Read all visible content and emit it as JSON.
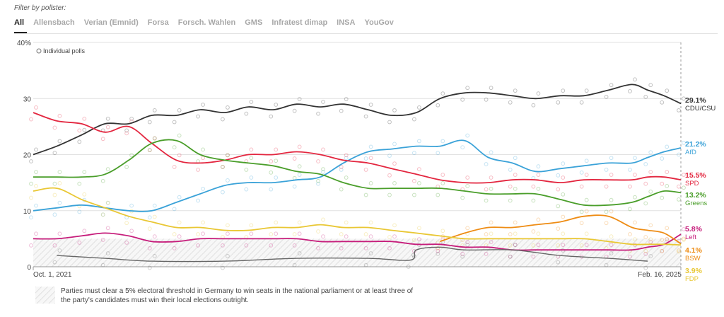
{
  "filter": {
    "label": "Filter by pollster:",
    "tabs": [
      {
        "label": "All",
        "active": true
      },
      {
        "label": "Allensbach",
        "active": false
      },
      {
        "label": "Verian (Emnid)",
        "active": false
      },
      {
        "label": "Forsa",
        "active": false
      },
      {
        "label": "Forsch. Wahlen",
        "active": false
      },
      {
        "label": "GMS",
        "active": false
      },
      {
        "label": "Infratest dimap",
        "active": false
      },
      {
        "label": "INSA",
        "active": false
      },
      {
        "label": "YouGov",
        "active": false
      }
    ]
  },
  "legend_label": "Individual polls",
  "footnote": "Parties must clear a 5% electoral threshold in Germany to win seats in the national parliament or at least three of the party's candidates must win their local elections outright.",
  "chart_data": {
    "type": "line",
    "x_start_label": "Oct. 1, 2021",
    "x_end_label": "Feb. 16, 2025",
    "x_start": "2021-10-01",
    "x_end": "2025-02-16",
    "ylim": [
      0,
      40
    ],
    "y_ticks": [
      "0",
      "10",
      "20",
      "30",
      "40%"
    ],
    "threshold": 5,
    "grid": true,
    "series": [
      {
        "name": "CDU/CSU",
        "color": "#333333",
        "final_label": "29.1%",
        "points": [
          [
            "2021-10-01",
            20
          ],
          [
            "2021-11-15",
            21.5
          ],
          [
            "2022-01-01",
            23.5
          ],
          [
            "2022-02-15",
            25.5
          ],
          [
            "2022-04-01",
            25.5
          ],
          [
            "2022-05-15",
            27
          ],
          [
            "2022-07-01",
            27
          ],
          [
            "2022-08-15",
            28
          ],
          [
            "2022-10-01",
            27.5
          ],
          [
            "2022-11-15",
            28.5
          ],
          [
            "2023-01-01",
            28
          ],
          [
            "2023-02-15",
            29
          ],
          [
            "2023-04-01",
            28.5
          ],
          [
            "2023-05-15",
            29
          ],
          [
            "2023-07-01",
            28
          ],
          [
            "2023-08-15",
            27
          ],
          [
            "2023-10-01",
            27.5
          ],
          [
            "2023-11-15",
            30
          ],
          [
            "2024-01-01",
            31
          ],
          [
            "2024-02-15",
            31
          ],
          [
            "2024-04-01",
            30.5
          ],
          [
            "2024-05-15",
            30
          ],
          [
            "2024-07-01",
            30.5
          ],
          [
            "2024-08-15",
            30.5
          ],
          [
            "2024-10-01",
            31.5
          ],
          [
            "2024-11-15",
            32.5
          ],
          [
            "2024-12-15",
            31.5
          ],
          [
            "2025-01-15",
            30.5
          ],
          [
            "2025-02-16",
            29.1
          ]
        ]
      },
      {
        "name": "AfD",
        "color": "#3aa2d8",
        "final_label": "21.2%",
        "points": [
          [
            "2021-10-01",
            10
          ],
          [
            "2021-11-15",
            10.5
          ],
          [
            "2022-01-01",
            11
          ],
          [
            "2022-02-15",
            10.5
          ],
          [
            "2022-04-01",
            10
          ],
          [
            "2022-05-15",
            10
          ],
          [
            "2022-07-01",
            11.5
          ],
          [
            "2022-08-15",
            13
          ],
          [
            "2022-10-01",
            14.5
          ],
          [
            "2022-11-15",
            15
          ],
          [
            "2023-01-01",
            15
          ],
          [
            "2023-02-15",
            15.5
          ],
          [
            "2023-04-01",
            16
          ],
          [
            "2023-05-15",
            18.5
          ],
          [
            "2023-07-01",
            20.5
          ],
          [
            "2023-08-15",
            21
          ],
          [
            "2023-10-01",
            21.5
          ],
          [
            "2023-11-15",
            21.5
          ],
          [
            "2024-01-01",
            22.5
          ],
          [
            "2024-02-15",
            19.5
          ],
          [
            "2024-04-01",
            18.5
          ],
          [
            "2024-05-15",
            17
          ],
          [
            "2024-07-01",
            17.5
          ],
          [
            "2024-08-15",
            18
          ],
          [
            "2024-10-01",
            18.5
          ],
          [
            "2024-11-15",
            18.5
          ],
          [
            "2024-12-15",
            19.5
          ],
          [
            "2025-01-15",
            20.5
          ],
          [
            "2025-02-16",
            21.2
          ]
        ]
      },
      {
        "name": "SPD",
        "color": "#e3263f",
        "final_label": "15.5%",
        "points": [
          [
            "2021-10-01",
            27.5
          ],
          [
            "2021-11-15",
            26
          ],
          [
            "2022-01-01",
            25.5
          ],
          [
            "2022-02-15",
            24
          ],
          [
            "2022-04-01",
            25
          ],
          [
            "2022-05-15",
            22
          ],
          [
            "2022-07-01",
            19
          ],
          [
            "2022-08-15",
            18.5
          ],
          [
            "2022-10-01",
            19
          ],
          [
            "2022-11-15",
            20
          ],
          [
            "2023-01-01",
            20
          ],
          [
            "2023-02-15",
            20.5
          ],
          [
            "2023-04-01",
            20
          ],
          [
            "2023-05-15",
            19
          ],
          [
            "2023-07-01",
            18.5
          ],
          [
            "2023-08-15",
            17.5
          ],
          [
            "2023-10-01",
            16.5
          ],
          [
            "2023-11-15",
            15.5
          ],
          [
            "2024-01-01",
            15
          ],
          [
            "2024-02-15",
            15
          ],
          [
            "2024-04-01",
            15.5
          ],
          [
            "2024-05-15",
            15.5
          ],
          [
            "2024-07-01",
            15
          ],
          [
            "2024-08-15",
            15.5
          ],
          [
            "2024-10-01",
            15.5
          ],
          [
            "2024-11-15",
            15.5
          ],
          [
            "2024-12-15",
            16
          ],
          [
            "2025-01-15",
            16
          ],
          [
            "2025-02-16",
            15.5
          ]
        ]
      },
      {
        "name": "Greens",
        "color": "#4a9e2a",
        "final_label": "13.2%",
        "points": [
          [
            "2021-10-01",
            16
          ],
          [
            "2021-11-15",
            16
          ],
          [
            "2022-01-01",
            16
          ],
          [
            "2022-02-15",
            16.5
          ],
          [
            "2022-04-01",
            19
          ],
          [
            "2022-05-15",
            22
          ],
          [
            "2022-07-01",
            22.5
          ],
          [
            "2022-08-15",
            20
          ],
          [
            "2022-10-01",
            19
          ],
          [
            "2022-11-15",
            18.5
          ],
          [
            "2023-01-01",
            18
          ],
          [
            "2023-02-15",
            17
          ],
          [
            "2023-04-01",
            16.5
          ],
          [
            "2023-05-15",
            15
          ],
          [
            "2023-07-01",
            14
          ],
          [
            "2023-08-15",
            14
          ],
          [
            "2023-10-01",
            14
          ],
          [
            "2023-11-15",
            14
          ],
          [
            "2024-01-01",
            13.5
          ],
          [
            "2024-02-15",
            13
          ],
          [
            "2024-04-01",
            13
          ],
          [
            "2024-05-15",
            13
          ],
          [
            "2024-07-01",
            12
          ],
          [
            "2024-08-15",
            11
          ],
          [
            "2024-10-01",
            11
          ],
          [
            "2024-11-15",
            11.5
          ],
          [
            "2024-12-15",
            12.5
          ],
          [
            "2025-01-15",
            13.5
          ],
          [
            "2025-02-16",
            13.2
          ]
        ]
      },
      {
        "name": "Left",
        "color": "#c61d7b",
        "final_label": "5.8%",
        "points": [
          [
            "2021-10-01",
            5
          ],
          [
            "2021-11-15",
            5
          ],
          [
            "2022-01-01",
            5.5
          ],
          [
            "2022-02-15",
            6
          ],
          [
            "2022-04-01",
            5.5
          ],
          [
            "2022-05-15",
            4.5
          ],
          [
            "2022-07-01",
            4.5
          ],
          [
            "2022-08-15",
            5
          ],
          [
            "2022-10-01",
            5
          ],
          [
            "2022-11-15",
            5
          ],
          [
            "2023-01-01",
            5
          ],
          [
            "2023-02-15",
            5
          ],
          [
            "2023-04-01",
            4.5
          ],
          [
            "2023-05-15",
            4.5
          ],
          [
            "2023-07-01",
            4.5
          ],
          [
            "2023-08-15",
            4.5
          ],
          [
            "2023-10-01",
            4
          ],
          [
            "2023-11-15",
            4
          ],
          [
            "2024-01-01",
            3.5
          ],
          [
            "2024-02-15",
            3.5
          ],
          [
            "2024-04-01",
            3
          ],
          [
            "2024-05-15",
            3
          ],
          [
            "2024-07-01",
            3
          ],
          [
            "2024-08-15",
            3
          ],
          [
            "2024-10-01",
            3
          ],
          [
            "2024-11-15",
            3
          ],
          [
            "2024-12-15",
            3.5
          ],
          [
            "2025-01-15",
            4
          ],
          [
            "2025-02-16",
            5.8
          ]
        ]
      },
      {
        "name": "BSW",
        "color": "#ee8c14",
        "final_label": "4.1%",
        "points": [
          [
            "2023-11-15",
            4.5
          ],
          [
            "2024-01-01",
            6
          ],
          [
            "2024-02-15",
            7
          ],
          [
            "2024-04-01",
            7
          ],
          [
            "2024-05-15",
            7.5
          ],
          [
            "2024-07-01",
            8
          ],
          [
            "2024-08-15",
            9
          ],
          [
            "2024-10-01",
            9
          ],
          [
            "2024-11-15",
            7
          ],
          [
            "2024-12-15",
            6.5
          ],
          [
            "2025-01-15",
            6
          ],
          [
            "2025-02-16",
            4.1
          ]
        ]
      },
      {
        "name": "FDP",
        "color": "#e9c734",
        "final_label": "3.9%",
        "points": [
          [
            "2021-10-01",
            13.5
          ],
          [
            "2021-11-15",
            14
          ],
          [
            "2022-01-01",
            12
          ],
          [
            "2022-02-15",
            10.5
          ],
          [
            "2022-04-01",
            9
          ],
          [
            "2022-05-15",
            8
          ],
          [
            "2022-07-01",
            7
          ],
          [
            "2022-08-15",
            7
          ],
          [
            "2022-10-01",
            6.5
          ],
          [
            "2022-11-15",
            6.5
          ],
          [
            "2023-01-01",
            7
          ],
          [
            "2023-02-15",
            7
          ],
          [
            "2023-04-01",
            7.5
          ],
          [
            "2023-05-15",
            7
          ],
          [
            "2023-07-01",
            7
          ],
          [
            "2023-08-15",
            6.5
          ],
          [
            "2023-10-01",
            6
          ],
          [
            "2023-11-15",
            5.5
          ],
          [
            "2024-01-01",
            5
          ],
          [
            "2024-02-15",
            5
          ],
          [
            "2024-04-01",
            5
          ],
          [
            "2024-05-15",
            5
          ],
          [
            "2024-07-01",
            5
          ],
          [
            "2024-08-15",
            5
          ],
          [
            "2024-10-01",
            4.5
          ],
          [
            "2024-11-15",
            4
          ],
          [
            "2024-12-15",
            4
          ],
          [
            "2025-01-15",
            4
          ],
          [
            "2025-02-16",
            3.9
          ]
        ]
      },
      {
        "name": "",
        "color": "#666666",
        "final_label": "",
        "points": [
          [
            "2021-11-15",
            2
          ],
          [
            "2022-02-15",
            1.5
          ],
          [
            "2022-05-15",
            1
          ],
          [
            "2022-10-01",
            1
          ],
          [
            "2023-02-15",
            1.5
          ],
          [
            "2023-07-01",
            1.5
          ],
          [
            "2023-09-20",
            1.2
          ],
          [
            "2023-10-01",
            3
          ],
          [
            "2023-11-15",
            3.5
          ],
          [
            "2024-01-01",
            3
          ],
          [
            "2024-04-01",
            3
          ],
          [
            "2024-07-01",
            2
          ],
          [
            "2024-10-01",
            1.5
          ],
          [
            "2024-12-15",
            1
          ]
        ]
      }
    ]
  }
}
